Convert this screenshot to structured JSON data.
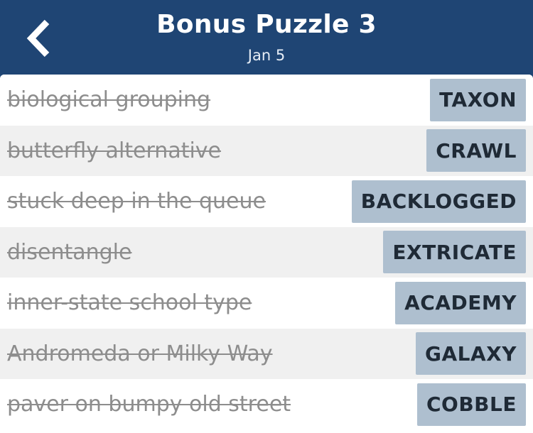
{
  "header": {
    "back_icon": "chevron-left-icon",
    "title": "Bonus Puzzle 3",
    "subtitle": "Jan 5"
  },
  "colors": {
    "header_bg": "#1f4574",
    "answer_bg": "#aebfcf",
    "row_alt_bg": "#f0f0f0"
  },
  "clues": [
    {
      "clue": "biological grouping",
      "answer": "TAXON"
    },
    {
      "clue": "butterfly alternative",
      "answer": "CRAWL"
    },
    {
      "clue": "stuck deep in the queue",
      "answer": "BACKLOGGED"
    },
    {
      "clue": "disentangle",
      "answer": "EXTRICATE"
    },
    {
      "clue": "inner-state school type",
      "answer": "ACADEMY"
    },
    {
      "clue": "Andromeda or Milky Way",
      "answer": "GALAXY"
    },
    {
      "clue": "paver on bumpy old street",
      "answer": "COBBLE"
    }
  ]
}
